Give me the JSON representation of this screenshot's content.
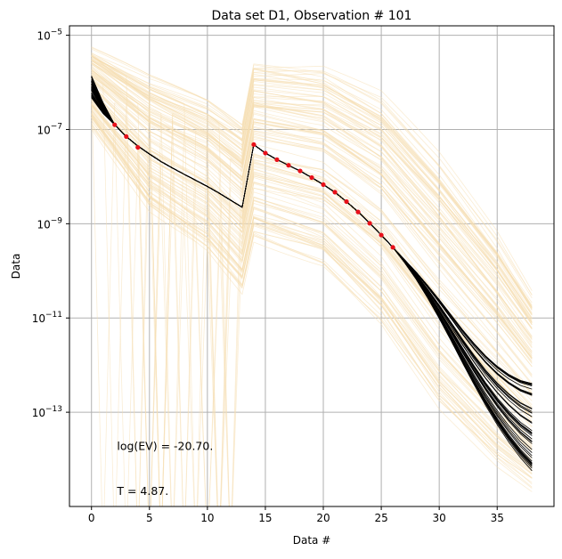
{
  "chart_data": {
    "type": "line",
    "title": "Data set D1, Observation # 101",
    "xlabel": "Data #",
    "ylabel": "Data",
    "xlim": [
      -1.9,
      39.9
    ],
    "ylim_log10": [
      -15.0,
      -4.8
    ],
    "yscale": "log",
    "grid": true,
    "x_ticks": [
      0,
      5,
      10,
      15,
      20,
      25,
      30,
      35
    ],
    "y_ticks": [
      {
        "exp": -5,
        "base": "10",
        "label": "−5"
      },
      {
        "exp": -7,
        "base": "10",
        "label": "−7"
      },
      {
        "exp": -9,
        "base": "10",
        "label": "−9"
      },
      {
        "exp": -11,
        "base": "10",
        "label": "−11"
      },
      {
        "exp": -13,
        "base": "10",
        "label": "−13"
      }
    ],
    "annotations": [
      {
        "text": "log(EV) = -20.70.",
        "x": 2.2,
        "y_log10": -13.8
      },
      {
        "text": "T = 4.87.",
        "x": 2.2,
        "y_log10": -14.75
      }
    ],
    "colors": {
      "prior": "#f5deb3",
      "posterior": "#000000",
      "observed": "#e8101a",
      "grid": "#b0b0b0"
    },
    "series": [
      {
        "role": "prior_ensemble_envelope",
        "x": [
          0,
          5,
          10,
          13,
          14,
          20,
          25,
          30,
          35,
          38
        ],
        "upper_log10": [
          -5.3,
          -5.9,
          -6.4,
          -6.9,
          -5.6,
          -5.7,
          -6.3,
          -7.6,
          -9.2,
          -10.4
        ],
        "lower_log10": [
          -6.9,
          -8.7,
          -9.6,
          -10.5,
          -9.4,
          -10.0,
          -11.3,
          -13.1,
          -14.3,
          -14.8
        ]
      },
      {
        "role": "posterior_ensemble_median",
        "x": [
          0,
          1,
          2,
          3,
          4,
          5,
          6,
          7,
          8,
          9,
          10,
          11,
          12,
          13,
          14,
          15,
          16,
          17,
          18,
          19,
          20,
          21,
          22,
          23,
          24,
          25,
          26,
          27,
          28,
          29,
          30,
          31,
          32,
          33,
          34,
          35,
          36,
          37,
          38
        ],
        "y_log10": [
          -6.1,
          -6.55,
          -6.9,
          -7.15,
          -7.35,
          -7.52,
          -7.68,
          -7.82,
          -7.95,
          -8.08,
          -8.21,
          -8.35,
          -8.5,
          -8.65,
          -7.32,
          -7.5,
          -7.64,
          -7.76,
          -7.88,
          -8.02,
          -8.17,
          -8.33,
          -8.53,
          -8.75,
          -8.99,
          -9.24,
          -9.5,
          -9.8,
          -10.12,
          -10.48,
          -10.87,
          -11.28,
          -11.7,
          -12.1,
          -12.48,
          -12.82,
          -13.12,
          -13.38,
          -13.58
        ]
      },
      {
        "role": "observed_data",
        "x": [
          2,
          3,
          4,
          14,
          15,
          16,
          17,
          18,
          19,
          20,
          21,
          22,
          23,
          24,
          25,
          26
        ],
        "y_log10": [
          -6.9,
          -7.15,
          -7.38,
          -7.32,
          -7.5,
          -7.64,
          -7.76,
          -7.88,
          -8.02,
          -8.17,
          -8.33,
          -8.53,
          -8.75,
          -8.99,
          -9.24,
          -9.5
        ]
      }
    ]
  }
}
